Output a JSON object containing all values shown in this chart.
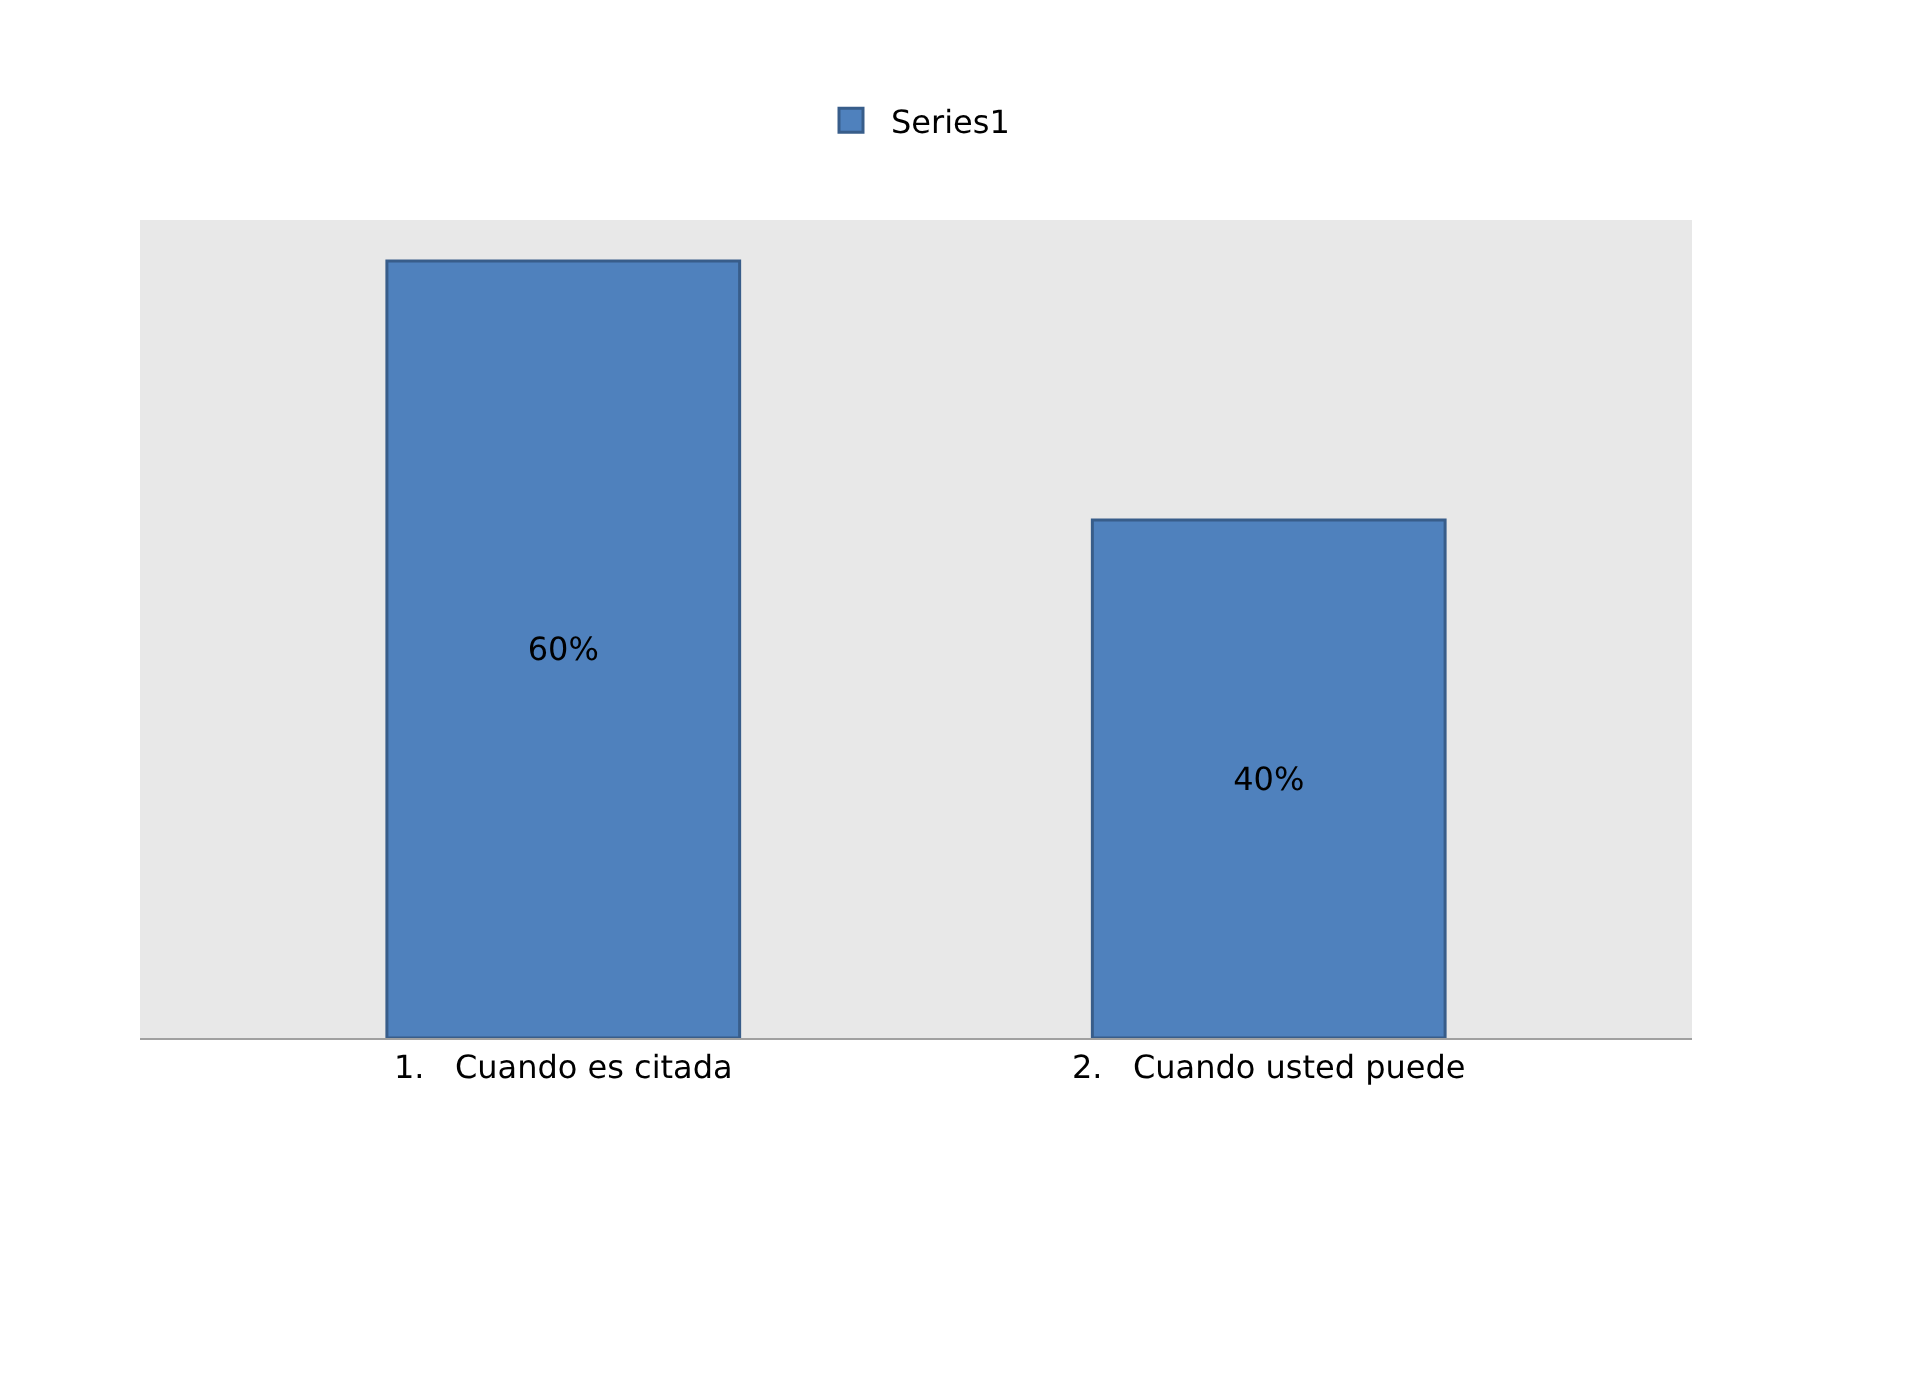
{
  "chart_data": {
    "type": "bar",
    "categories": [
      "1.   Cuando es citada",
      "2.   Cuando usted puede"
    ],
    "series": [
      {
        "name": "Series1",
        "color": "#4f81bd",
        "values": [
          60,
          40
        ],
        "value_labels": [
          "60%",
          "40%"
        ]
      }
    ],
    "legend": "top"
  }
}
